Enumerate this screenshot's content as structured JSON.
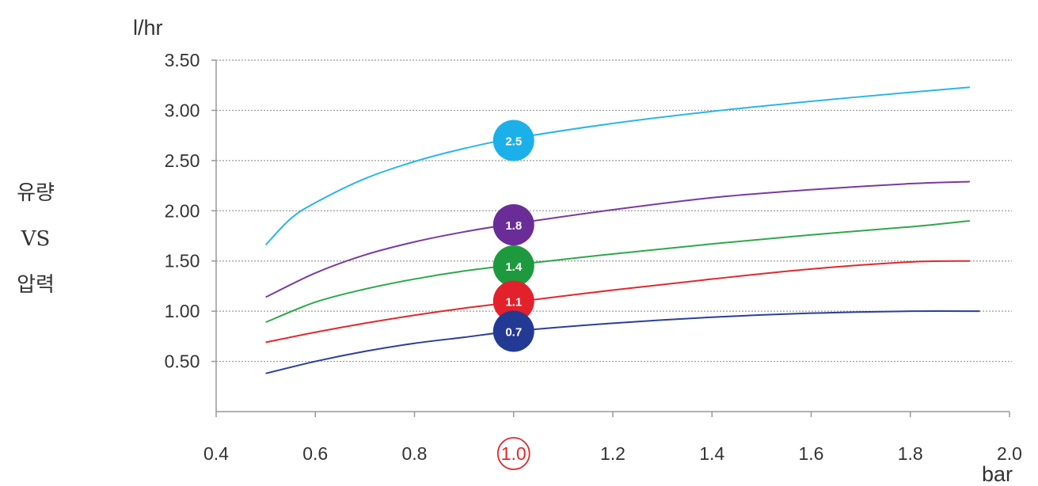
{
  "side_title": [
    "유량",
    "VS",
    "압력"
  ],
  "chart_data": {
    "type": "line",
    "y_unit": "l/hr",
    "x_unit": "bar",
    "xlim": [
      0.4,
      2.0
    ],
    "ylim": [
      0,
      3.5
    ],
    "x_ticks": [
      "0.4",
      "0.6",
      "0.8",
      "1.0",
      "1.2",
      "1.4",
      "1.6",
      "1.8",
      "2.0"
    ],
    "y_ticks": [
      "0.50",
      "1.00",
      "1.50",
      "2.00",
      "2.50",
      "3.00",
      "3.50"
    ],
    "y_tick_values": [
      0.5,
      1.0,
      1.5,
      2.0,
      2.5,
      3.0,
      3.5
    ],
    "highlight_x_tick": "1.0",
    "highlight_color": "#e0282e",
    "grid": "horizontal dotted",
    "series": [
      {
        "name": "2.5",
        "color": "#29b6e8",
        "x": [
          0.5,
          0.55,
          0.6,
          0.7,
          0.8,
          0.9,
          1.0,
          1.2,
          1.4,
          1.6,
          1.8,
          1.92
        ],
        "y": [
          1.66,
          1.92,
          2.08,
          2.32,
          2.49,
          2.62,
          2.72,
          2.87,
          2.99,
          3.09,
          3.18,
          3.23
        ]
      },
      {
        "name": "1.8",
        "color": "#7a3aa0",
        "x": [
          0.5,
          0.6,
          0.7,
          0.8,
          0.9,
          1.0,
          1.2,
          1.4,
          1.6,
          1.8,
          1.92
        ],
        "y": [
          1.14,
          1.38,
          1.56,
          1.69,
          1.79,
          1.87,
          2.01,
          2.13,
          2.21,
          2.27,
          2.29
        ]
      },
      {
        "name": "1.4",
        "color": "#2ea84a",
        "x": [
          0.5,
          0.6,
          0.7,
          0.8,
          0.9,
          1.0,
          1.2,
          1.4,
          1.6,
          1.8,
          1.92
        ],
        "y": [
          0.89,
          1.09,
          1.22,
          1.32,
          1.4,
          1.46,
          1.57,
          1.67,
          1.76,
          1.84,
          1.9
        ]
      },
      {
        "name": "1.1",
        "color": "#e0282e",
        "x": [
          0.5,
          0.6,
          0.7,
          0.8,
          0.9,
          1.0,
          1.2,
          1.4,
          1.6,
          1.8,
          1.92
        ],
        "y": [
          0.69,
          0.79,
          0.88,
          0.96,
          1.03,
          1.09,
          1.21,
          1.32,
          1.42,
          1.49,
          1.5
        ]
      },
      {
        "name": "0.7",
        "color": "#2a3f9a",
        "x": [
          0.5,
          0.6,
          0.7,
          0.8,
          0.9,
          1.0,
          1.2,
          1.4,
          1.6,
          1.8,
          1.94
        ],
        "y": [
          0.38,
          0.5,
          0.6,
          0.68,
          0.74,
          0.8,
          0.88,
          0.94,
          0.98,
          1.0,
          1.0
        ]
      }
    ],
    "markers": [
      {
        "label": "2.5",
        "x": 1.0,
        "y": 2.7,
        "color": "#1cb0ea"
      },
      {
        "label": "1.8",
        "x": 1.0,
        "y": 1.86,
        "color": "#6a2d97"
      },
      {
        "label": "1.4",
        "x": 1.0,
        "y": 1.45,
        "color": "#1e9a3e"
      },
      {
        "label": "1.1",
        "x": 1.0,
        "y": 1.1,
        "color": "#e3212b"
      },
      {
        "label": "0.7",
        "x": 1.0,
        "y": 0.8,
        "color": "#233a94"
      }
    ]
  }
}
